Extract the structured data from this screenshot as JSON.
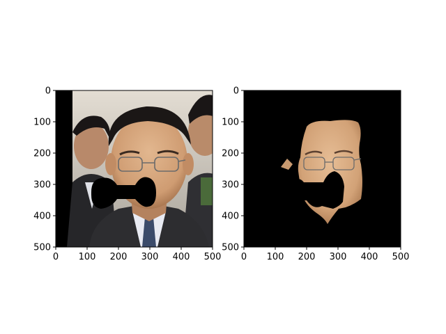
{
  "colors": {
    "figure_bg": "#ffffff",
    "axes_frame": "#000000",
    "mask_color": "#000000",
    "skin_tone": "#d7a77d",
    "suit_color": "#2d2d30",
    "shirt_color": "#e8eaf2",
    "tie_color": "#3b4b6a",
    "hair_color": "#1b1716",
    "wall_color": "#c9c0b3"
  },
  "chart_data": [
    {
      "type": "image",
      "content": "photo of a man in glasses and a dark suit with an occluding black mask over the mouth and nose, a black band at the left edge, a second man partly visible at the right edge",
      "xlim": [
        0,
        500
      ],
      "ylim": [
        500,
        0
      ],
      "x_ticks": [
        0,
        100,
        200,
        300,
        400,
        500
      ],
      "y_ticks": [
        0,
        100,
        200,
        300,
        400,
        500
      ],
      "x_tick_labels": [
        "0",
        "100",
        "200",
        "300",
        "400",
        "500"
      ],
      "y_tick_labels": [
        "0",
        "100",
        "200",
        "300",
        "400",
        "500"
      ],
      "title": "",
      "xlabel": "",
      "ylabel": ""
    },
    {
      "type": "image",
      "content": "segmented face region (skin pixels only) with the same occluding mask, on a black background",
      "xlim": [
        0,
        500
      ],
      "ylim": [
        500,
        0
      ],
      "x_ticks": [
        0,
        100,
        200,
        300,
        400,
        500
      ],
      "y_ticks": [
        0,
        100,
        200,
        300,
        400,
        500
      ],
      "x_tick_labels": [
        "0",
        "100",
        "200",
        "300",
        "400",
        "500"
      ],
      "y_tick_labels": [
        "0",
        "100",
        "200",
        "300",
        "400",
        "500"
      ],
      "title": "",
      "xlabel": "",
      "ylabel": ""
    }
  ]
}
